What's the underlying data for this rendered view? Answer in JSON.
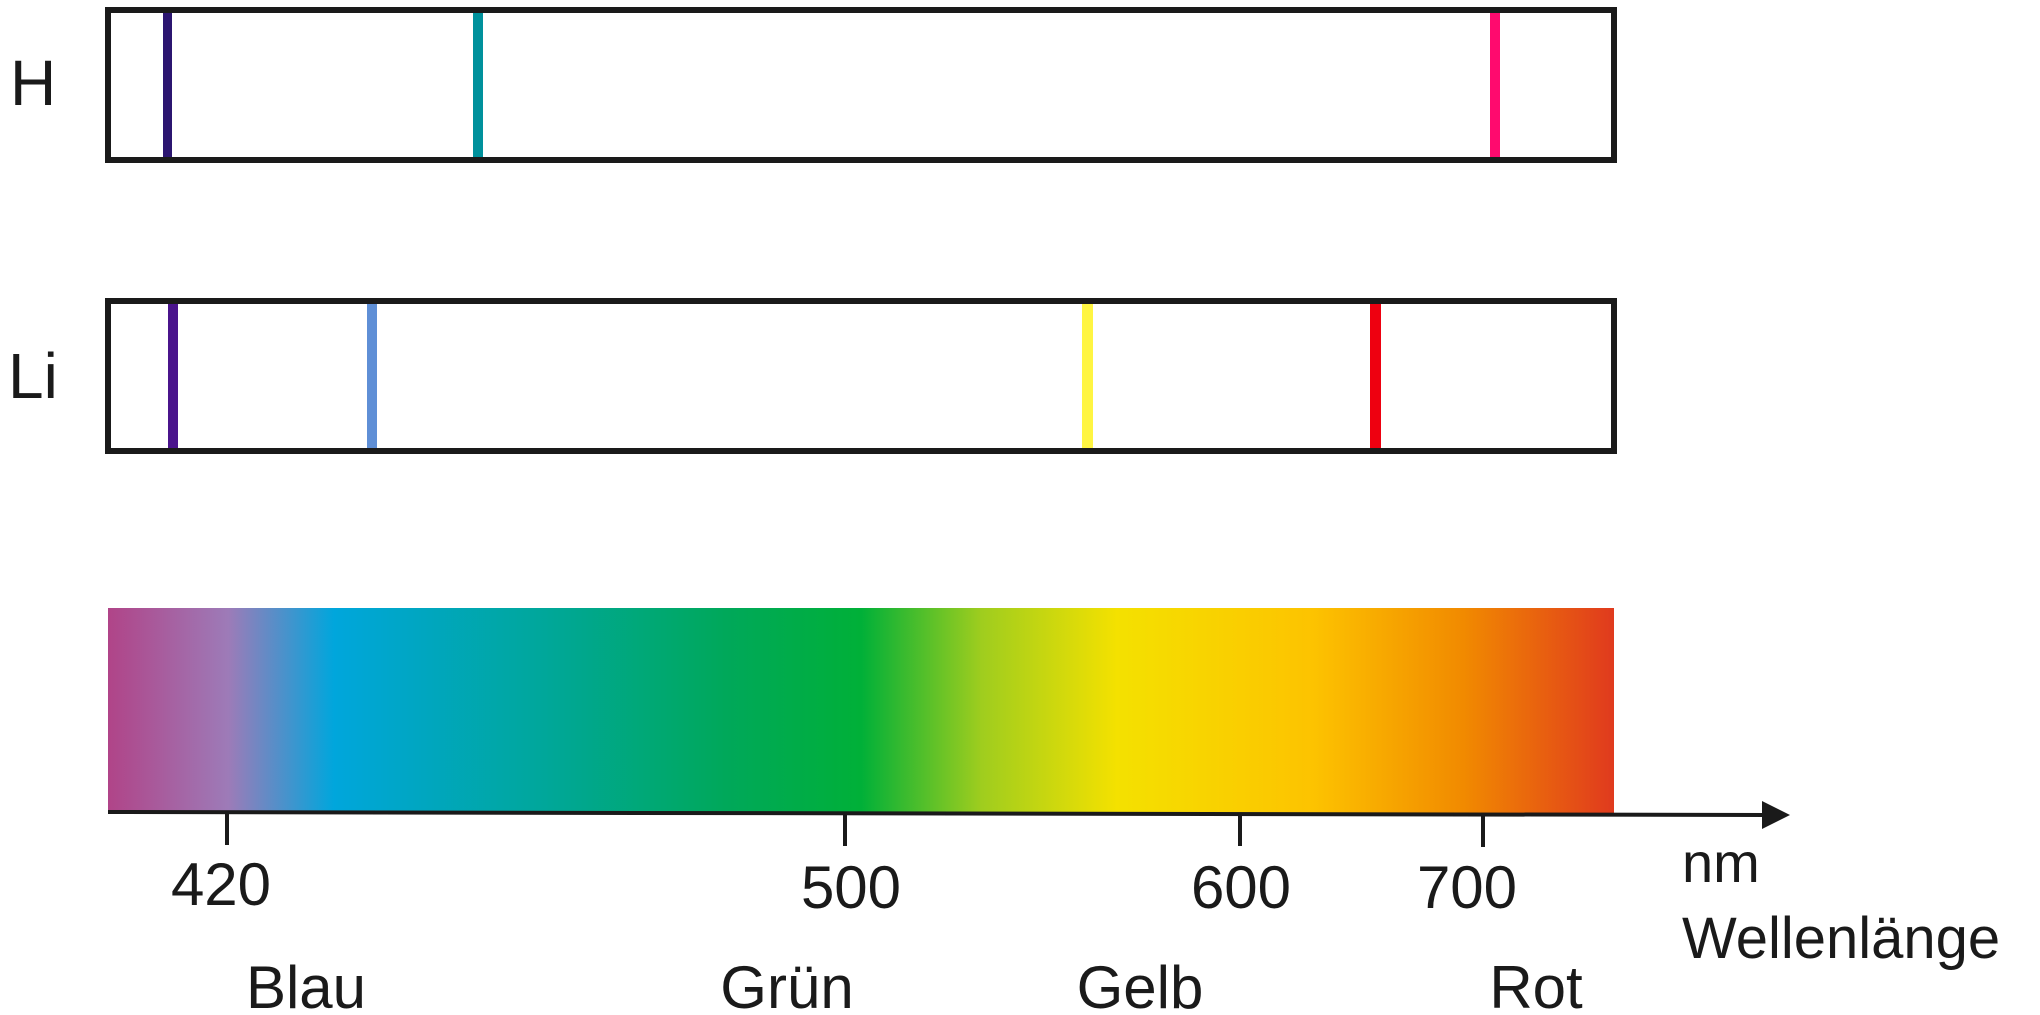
{
  "spectra": [
    {
      "element": "H",
      "lines": [
        {
          "color": "#2b1570"
        },
        {
          "color": "#00919c"
        },
        {
          "color": "#ff0a6e"
        }
      ]
    },
    {
      "element": "Li",
      "lines": [
        {
          "color": "#4a148c"
        },
        {
          "color": "#5f8fd6"
        },
        {
          "color": "#fff542"
        },
        {
          "color": "#ee0010"
        }
      ]
    }
  ],
  "axis": {
    "ticks": [
      "420",
      "500",
      "600",
      "700"
    ],
    "unit": "nm",
    "label": "Wellenlänge"
  },
  "color_names": [
    "Blau",
    "Grün",
    "Gelb",
    "Rot"
  ],
  "gradient_colors": [
    "#b04488",
    "#9d7bb8",
    "#00a6dc",
    "#00a79a",
    "#00a85a",
    "#00b038",
    "#9fcd1e",
    "#f4e100",
    "#fdc300",
    "#f18a00",
    "#e03a1e"
  ]
}
